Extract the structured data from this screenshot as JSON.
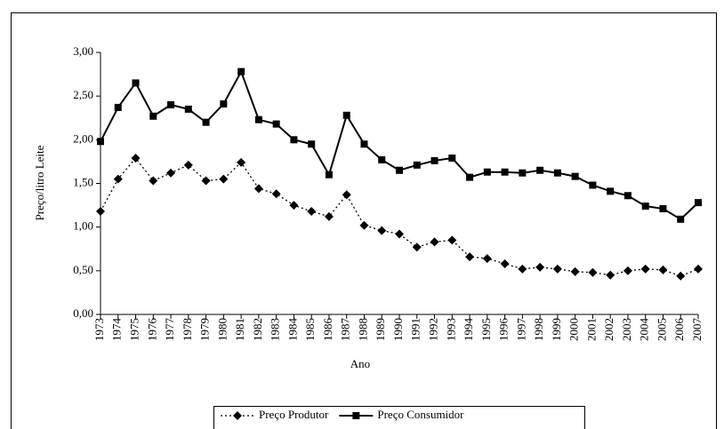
{
  "chart_data": {
    "type": "line",
    "y_label": "Preço/litro Leite",
    "x_label": "Ano",
    "categories": [
      "1973",
      "1974",
      "1975",
      "1976",
      "1977",
      "1978",
      "1979",
      "1980",
      "1981",
      "1982",
      "1983",
      "1984",
      "1985",
      "1986",
      "1987",
      "1988",
      "1989",
      "1990",
      "1991",
      "1992",
      "1993",
      "1994",
      "1995",
      "1996",
      "1997",
      "1998",
      "1999",
      "2000",
      "2001",
      "2002",
      "2003",
      "2004",
      "2005",
      "2006",
      "2007"
    ],
    "series": [
      {
        "name": "Preço Produtor",
        "color": "#000000",
        "style": "dotted",
        "marker": "diamond",
        "values": [
          1.18,
          1.55,
          1.79,
          1.53,
          1.62,
          1.71,
          1.53,
          1.55,
          1.74,
          1.44,
          1.38,
          1.25,
          1.18,
          1.12,
          1.37,
          1.02,
          0.96,
          0.92,
          0.77,
          0.83,
          0.85,
          0.66,
          0.64,
          0.58,
          0.52,
          0.54,
          0.52,
          0.49,
          0.48,
          0.45,
          0.5,
          0.52,
          0.51,
          0.44,
          0.52
        ]
      },
      {
        "name": "Preço Consumidor",
        "color": "#000000",
        "style": "solid",
        "marker": "square",
        "values": [
          1.98,
          2.37,
          2.65,
          2.27,
          2.4,
          2.35,
          2.2,
          2.41,
          2.78,
          2.23,
          2.18,
          2.0,
          1.95,
          1.6,
          2.28,
          1.95,
          1.77,
          1.65,
          1.71,
          1.76,
          1.79,
          1.57,
          1.63,
          1.63,
          1.62,
          1.65,
          1.62,
          1.58,
          1.48,
          1.41,
          1.36,
          1.24,
          1.21,
          1.09,
          1.28
        ]
      }
    ],
    "ylim": [
      0,
      3
    ],
    "yticks": [
      {
        "value": 0,
        "label": "0,00"
      },
      {
        "value": 0.5,
        "label": "0,50"
      },
      {
        "value": 1,
        "label": "1,00"
      },
      {
        "value": 1.5,
        "label": "1,50"
      },
      {
        "value": 2,
        "label": "2,00"
      },
      {
        "value": 2.5,
        "label": "2,50"
      },
      {
        "value": 3,
        "label": "3,00"
      }
    ],
    "grid": false,
    "legend_position": "bottom"
  }
}
